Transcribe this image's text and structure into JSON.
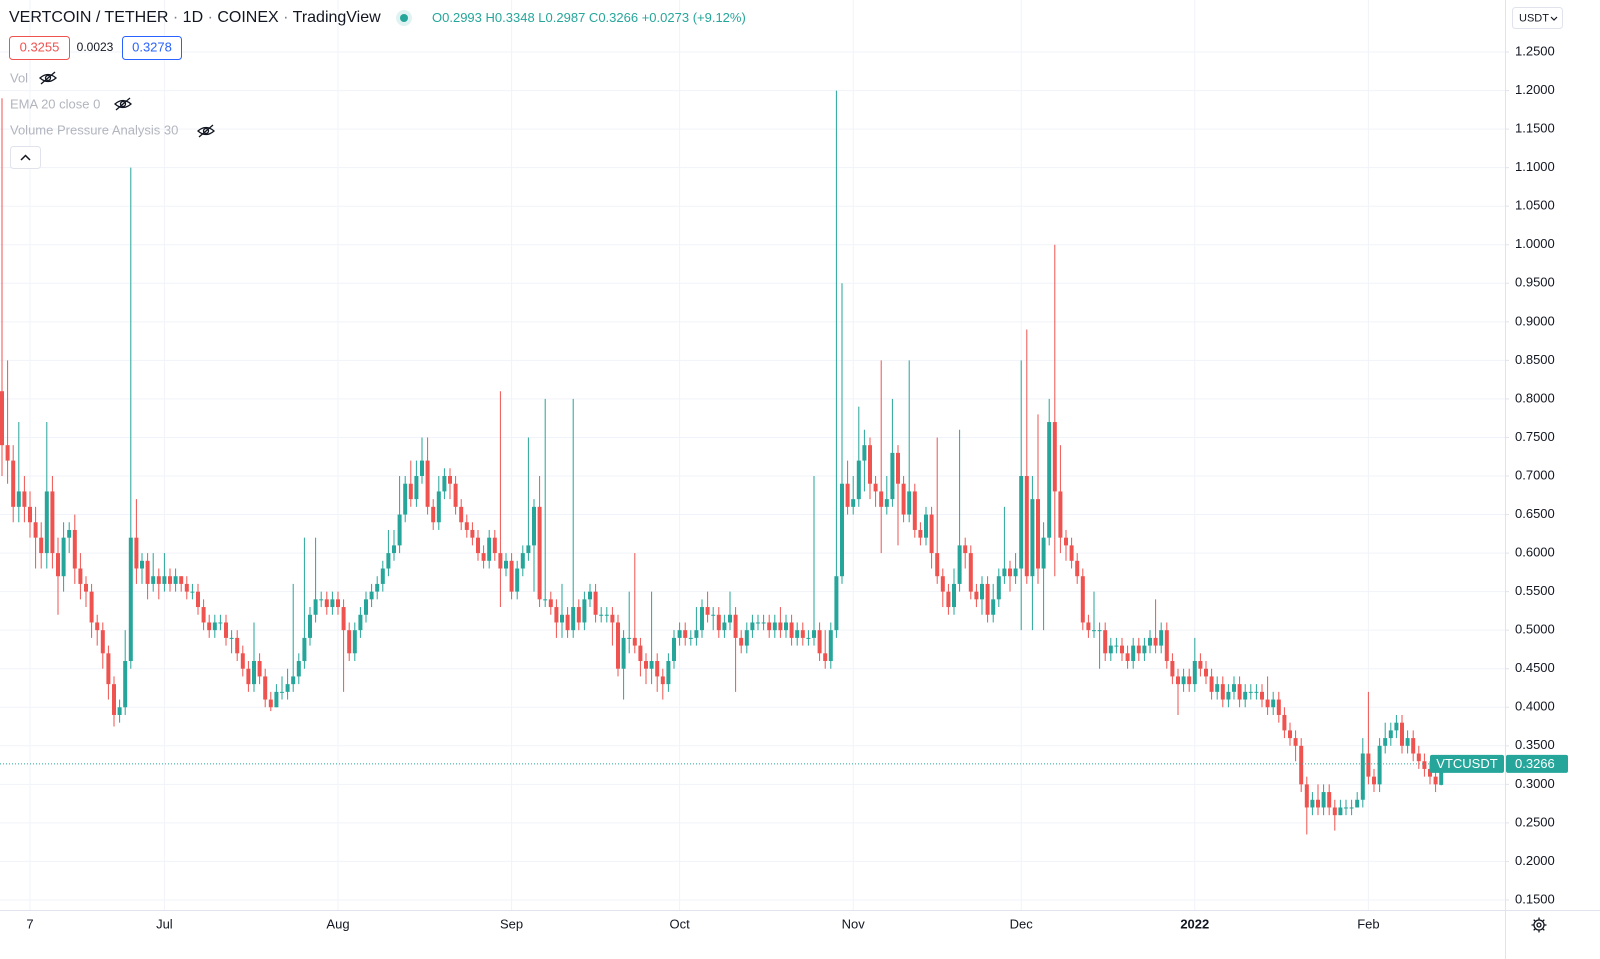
{
  "header": {
    "symbol": "VERTCOIN / TETHER",
    "interval": "1D",
    "exchange": "COINEX",
    "source": "TradingView",
    "separator": "·",
    "ohlc_prefixes": [
      "O",
      "H",
      "L",
      "C"
    ],
    "change": "+0.0273",
    "change_pct": "(+9.12%)"
  },
  "quote": {
    "bid": "0.3255",
    "spread": "0.0023",
    "ask": "0.3278"
  },
  "indicators": [
    "Vol",
    "EMA 20 close 0",
    "Volume Pressure Analysis 30"
  ],
  "currency": "USDT",
  "price_tag": "VTCUSDT",
  "chart_data": {
    "type": "candlestick",
    "up_color": "#26a69a",
    "down_color": "#ef5350",
    "grid": true,
    "ylim": [
      0.137,
      1.3175
    ],
    "yticks": [
      {
        "value": 0.15,
        "label": "0.1500"
      },
      {
        "value": 0.2,
        "label": "0.2000"
      },
      {
        "value": 0.25,
        "label": "0.2500"
      },
      {
        "value": 0.3,
        "label": "0.3000"
      },
      {
        "value": 0.35,
        "label": "0.3500"
      },
      {
        "value": 0.4,
        "label": "0.4000"
      },
      {
        "value": 0.45,
        "label": "0.4500"
      },
      {
        "value": 0.5,
        "label": "0.5000"
      },
      {
        "value": 0.55,
        "label": "0.5500"
      },
      {
        "value": 0.6,
        "label": "0.6000"
      },
      {
        "value": 0.65,
        "label": "0.6500"
      },
      {
        "value": 0.7,
        "label": "0.7000"
      },
      {
        "value": 0.75,
        "label": "0.7500"
      },
      {
        "value": 0.8,
        "label": "0.8000"
      },
      {
        "value": 0.85,
        "label": "0.8500"
      },
      {
        "value": 0.9,
        "label": "0.9000"
      },
      {
        "value": 0.95,
        "label": "0.9500"
      },
      {
        "value": 1.0,
        "label": "1.0000"
      },
      {
        "value": 1.05,
        "label": "1.0500"
      },
      {
        "value": 1.1,
        "label": "1.1000"
      },
      {
        "value": 1.15,
        "label": "1.1500"
      },
      {
        "value": 1.2,
        "label": "1.2000"
      },
      {
        "value": 1.25,
        "label": "1.2500"
      }
    ],
    "categories": [
      null,
      null,
      null,
      null,
      null,
      "7",
      null,
      null,
      null,
      null,
      null,
      null,
      null,
      null,
      null,
      null,
      null,
      null,
      null,
      null,
      null,
      null,
      null,
      null,
      null,
      null,
      null,
      null,
      null,
      "Jul",
      null,
      null,
      null,
      null,
      null,
      null,
      null,
      null,
      null,
      null,
      null,
      null,
      null,
      null,
      null,
      null,
      null,
      null,
      null,
      null,
      null,
      null,
      null,
      null,
      null,
      null,
      null,
      null,
      null,
      null,
      "Aug",
      null,
      null,
      null,
      null,
      null,
      null,
      null,
      null,
      null,
      null,
      null,
      null,
      null,
      null,
      null,
      null,
      null,
      null,
      null,
      null,
      null,
      null,
      null,
      null,
      null,
      null,
      null,
      null,
      null,
      null,
      "Sep",
      null,
      null,
      null,
      null,
      null,
      null,
      null,
      null,
      null,
      null,
      null,
      null,
      null,
      null,
      null,
      null,
      null,
      null,
      null,
      null,
      null,
      null,
      null,
      null,
      null,
      null,
      null,
      null,
      null,
      "Oct",
      null,
      null,
      null,
      null,
      null,
      null,
      null,
      null,
      null,
      null,
      null,
      null,
      null,
      null,
      null,
      null,
      null,
      null,
      null,
      null,
      null,
      null,
      null,
      null,
      null,
      null,
      null,
      null,
      null,
      null,
      "Nov",
      null,
      null,
      null,
      null,
      null,
      null,
      null,
      null,
      null,
      null,
      null,
      null,
      null,
      null,
      null,
      null,
      null,
      null,
      null,
      null,
      null,
      null,
      null,
      null,
      null,
      null,
      null,
      null,
      null,
      "Dec",
      null,
      null,
      null,
      null,
      null,
      null,
      null,
      null,
      null,
      null,
      null,
      null,
      null,
      null,
      null,
      null,
      null,
      null,
      null,
      null,
      null,
      null,
      null,
      null,
      null,
      null,
      null,
      null,
      null,
      null,
      "2022",
      null,
      null,
      null,
      null,
      null,
      null,
      null,
      null,
      null,
      null,
      null,
      null,
      null,
      null,
      null,
      null,
      null,
      null,
      null,
      null,
      null,
      null,
      null,
      null,
      null,
      null,
      null,
      null,
      null,
      null,
      "Feb",
      null,
      null,
      null,
      null,
      null,
      null,
      null,
      null,
      null,
      null,
      null,
      null,
      null
    ],
    "open": [
      0.81,
      0.74,
      0.72,
      0.66,
      0.68,
      0.66,
      0.64,
      0.62,
      0.6,
      0.68,
      0.6,
      0.57,
      0.62,
      0.63,
      0.58,
      0.56,
      0.55,
      0.51,
      0.5,
      0.47,
      0.43,
      0.39,
      0.4,
      0.46,
      0.62,
      0.58,
      0.59,
      0.56,
      0.57,
      0.56,
      0.57,
      0.56,
      0.57,
      0.56,
      0.55,
      0.55,
      0.53,
      0.51,
      0.5,
      0.51,
      0.51,
      0.49,
      0.49,
      0.47,
      0.45,
      0.43,
      0.46,
      0.44,
      0.41,
      0.4,
      0.42,
      0.42,
      0.43,
      0.44,
      0.46,
      0.49,
      0.52,
      0.54,
      0.54,
      0.53,
      0.54,
      0.53,
      0.5,
      0.47,
      0.5,
      0.52,
      0.54,
      0.55,
      0.56,
      0.58,
      0.6,
      0.61,
      0.65,
      0.69,
      0.67,
      0.7,
      0.72,
      0.66,
      0.64,
      0.68,
      0.7,
      0.69,
      0.66,
      0.64,
      0.63,
      0.62,
      0.6,
      0.59,
      0.62,
      0.6,
      0.58,
      0.59,
      0.55,
      0.58,
      0.6,
      0.61,
      0.66,
      0.54,
      0.54,
      0.53,
      0.51,
      0.52,
      0.5,
      0.53,
      0.51,
      0.54,
      0.55,
      0.52,
      0.52,
      0.52,
      0.51,
      0.45,
      0.49,
      0.49,
      0.48,
      0.46,
      0.45,
      0.46,
      0.44,
      0.43,
      0.46,
      0.49,
      0.5,
      0.49,
      0.49,
      0.5,
      0.53,
      0.52,
      0.52,
      0.5,
      0.51,
      0.52,
      0.49,
      0.48,
      0.5,
      0.51,
      0.51,
      0.51,
      0.5,
      0.51,
      0.5,
      0.51,
      0.49,
      0.5,
      0.49,
      0.49,
      0.5,
      0.47,
      0.46,
      0.5,
      0.57,
      0.69,
      0.66,
      0.67,
      0.72,
      0.74,
      0.69,
      0.68,
      0.66,
      0.67,
      0.73,
      0.69,
      0.65,
      0.68,
      0.63,
      0.62,
      0.65,
      0.6,
      0.57,
      0.55,
      0.53,
      0.56,
      0.61,
      0.6,
      0.55,
      0.54,
      0.56,
      0.52,
      0.54,
      0.57,
      0.58,
      0.57,
      0.58,
      0.7,
      0.57,
      0.67,
      0.58,
      0.62,
      0.77,
      0.68,
      0.62,
      0.61,
      0.59,
      0.57,
      0.51,
      0.5,
      0.5,
      0.5,
      0.47,
      0.48,
      0.48,
      0.47,
      0.46,
      0.48,
      0.47,
      0.48,
      0.49,
      0.48,
      0.5,
      0.46,
      0.44,
      0.43,
      0.44,
      0.43,
      0.46,
      0.45,
      0.44,
      0.42,
      0.43,
      0.41,
      0.42,
      0.43,
      0.41,
      0.42,
      0.42,
      0.42,
      0.41,
      0.4,
      0.41,
      0.39,
      0.37,
      0.36,
      0.35,
      0.3,
      0.27,
      0.28,
      0.27,
      0.29,
      0.27,
      0.26,
      0.27,
      0.27,
      0.27,
      0.28,
      0.34,
      0.31,
      0.3,
      0.35,
      0.36,
      0.37,
      0.38,
      0.35,
      0.36,
      0.34,
      0.33,
      0.32,
      0.31,
      0.2993
    ],
    "high": [
      1.19,
      0.85,
      0.74,
      0.77,
      0.7,
      0.68,
      0.66,
      0.64,
      0.77,
      0.7,
      0.62,
      0.64,
      0.64,
      0.65,
      0.6,
      0.57,
      0.56,
      0.52,
      0.51,
      0.48,
      0.44,
      0.41,
      0.5,
      1.1,
      0.67,
      0.6,
      0.6,
      0.6,
      0.58,
      0.6,
      0.58,
      0.58,
      0.57,
      0.57,
      0.56,
      0.56,
      0.54,
      0.52,
      0.52,
      0.52,
      0.52,
      0.5,
      0.5,
      0.48,
      0.46,
      0.51,
      0.47,
      0.45,
      0.42,
      0.43,
      0.44,
      0.45,
      0.56,
      0.47,
      0.62,
      0.53,
      0.62,
      0.55,
      0.55,
      0.55,
      0.55,
      0.54,
      0.51,
      0.51,
      0.53,
      0.55,
      0.56,
      0.57,
      0.59,
      0.63,
      0.63,
      0.7,
      0.7,
      0.72,
      0.72,
      0.75,
      0.75,
      0.67,
      0.7,
      0.71,
      0.71,
      0.7,
      0.67,
      0.65,
      0.64,
      0.63,
      0.61,
      0.63,
      0.63,
      0.81,
      0.6,
      0.6,
      0.59,
      0.61,
      0.75,
      0.67,
      0.7,
      0.8,
      0.55,
      0.54,
      0.56,
      0.53,
      0.8,
      0.54,
      0.55,
      0.56,
      0.56,
      0.53,
      0.53,
      0.53,
      0.52,
      0.5,
      0.55,
      0.6,
      0.49,
      0.47,
      0.55,
      0.47,
      0.45,
      0.47,
      0.5,
      0.51,
      0.51,
      0.5,
      0.53,
      0.54,
      0.55,
      0.53,
      0.53,
      0.52,
      0.55,
      0.53,
      0.5,
      0.51,
      0.52,
      0.52,
      0.52,
      0.52,
      0.52,
      0.53,
      0.52,
      0.52,
      0.51,
      0.51,
      0.5,
      0.7,
      0.51,
      0.5,
      0.51,
      1.2,
      0.95,
      0.72,
      0.7,
      0.79,
      0.76,
      0.75,
      0.7,
      0.85,
      0.7,
      0.8,
      0.74,
      0.7,
      0.85,
      0.69,
      0.64,
      0.66,
      0.66,
      0.75,
      0.58,
      0.56,
      0.58,
      0.76,
      0.62,
      0.61,
      0.56,
      0.57,
      0.57,
      0.56,
      0.58,
      0.66,
      0.59,
      0.6,
      0.85,
      0.89,
      0.7,
      0.78,
      0.64,
      0.8,
      1.0,
      0.74,
      0.63,
      0.62,
      0.6,
      0.58,
      0.52,
      0.55,
      0.51,
      0.51,
      0.49,
      0.49,
      0.49,
      0.48,
      0.49,
      0.49,
      0.49,
      0.5,
      0.54,
      0.51,
      0.51,
      0.47,
      0.45,
      0.45,
      0.45,
      0.49,
      0.47,
      0.46,
      0.45,
      0.44,
      0.44,
      0.43,
      0.44,
      0.44,
      0.43,
      0.43,
      0.43,
      0.43,
      0.44,
      0.42,
      0.42,
      0.4,
      0.38,
      0.37,
      0.36,
      0.31,
      0.29,
      0.3,
      0.3,
      0.3,
      0.28,
      0.28,
      0.28,
      0.28,
      0.29,
      0.36,
      0.42,
      0.32,
      0.36,
      0.38,
      0.38,
      0.39,
      0.39,
      0.37,
      0.37,
      0.35,
      0.34,
      0.33,
      0.32,
      0.3348
    ],
    "low": [
      0.7,
      0.69,
      0.64,
      0.64,
      0.64,
      0.62,
      0.58,
      0.58,
      0.58,
      0.58,
      0.52,
      0.55,
      0.6,
      0.56,
      0.54,
      0.53,
      0.49,
      0.48,
      0.45,
      0.41,
      0.375,
      0.38,
      0.39,
      0.45,
      0.56,
      0.56,
      0.54,
      0.55,
      0.54,
      0.55,
      0.55,
      0.55,
      0.55,
      0.54,
      0.54,
      0.52,
      0.5,
      0.49,
      0.49,
      0.5,
      0.48,
      0.47,
      0.46,
      0.44,
      0.42,
      0.42,
      0.43,
      0.4,
      0.395,
      0.4,
      0.41,
      0.41,
      0.42,
      0.43,
      0.45,
      0.48,
      0.51,
      0.53,
      0.52,
      0.52,
      0.52,
      0.42,
      0.46,
      0.46,
      0.49,
      0.51,
      0.53,
      0.54,
      0.55,
      0.57,
      0.59,
      0.6,
      0.64,
      0.66,
      0.66,
      0.69,
      0.65,
      0.63,
      0.63,
      0.67,
      0.67,
      0.65,
      0.63,
      0.62,
      0.61,
      0.59,
      0.58,
      0.58,
      0.59,
      0.53,
      0.57,
      0.54,
      0.54,
      0.57,
      0.59,
      0.55,
      0.53,
      0.53,
      0.52,
      0.49,
      0.49,
      0.49,
      0.49,
      0.5,
      0.5,
      0.53,
      0.51,
      0.51,
      0.51,
      0.48,
      0.44,
      0.41,
      0.47,
      0.47,
      0.44,
      0.43,
      0.43,
      0.42,
      0.41,
      0.42,
      0.45,
      0.48,
      0.48,
      0.48,
      0.48,
      0.49,
      0.51,
      0.5,
      0.49,
      0.49,
      0.5,
      0.42,
      0.47,
      0.47,
      0.49,
      0.5,
      0.5,
      0.49,
      0.49,
      0.49,
      0.49,
      0.48,
      0.48,
      0.48,
      0.48,
      0.48,
      0.46,
      0.45,
      0.45,
      0.49,
      0.56,
      0.65,
      0.65,
      0.66,
      0.68,
      0.67,
      0.66,
      0.6,
      0.65,
      0.66,
      0.61,
      0.64,
      0.64,
      0.62,
      0.61,
      0.61,
      0.58,
      0.56,
      0.53,
      0.52,
      0.52,
      0.55,
      0.58,
      0.54,
      0.53,
      0.52,
      0.51,
      0.51,
      0.53,
      0.56,
      0.55,
      0.56,
      0.5,
      0.56,
      0.5,
      0.56,
      0.5,
      0.61,
      0.57,
      0.6,
      0.59,
      0.58,
      0.56,
      0.5,
      0.49,
      0.49,
      0.45,
      0.46,
      0.46,
      0.47,
      0.46,
      0.45,
      0.45,
      0.46,
      0.46,
      0.47,
      0.47,
      0.47,
      0.45,
      0.43,
      0.39,
      0.42,
      0.42,
      0.42,
      0.44,
      0.43,
      0.41,
      0.41,
      0.4,
      0.4,
      0.41,
      0.4,
      0.4,
      0.41,
      0.41,
      0.4,
      0.39,
      0.39,
      0.38,
      0.36,
      0.35,
      0.33,
      0.29,
      0.235,
      0.26,
      0.26,
      0.26,
      0.26,
      0.24,
      0.26,
      0.26,
      0.26,
      0.27,
      0.27,
      0.3,
      0.29,
      0.29,
      0.34,
      0.35,
      0.36,
      0.34,
      0.34,
      0.33,
      0.32,
      0.31,
      0.3,
      0.29,
      0.2987
    ],
    "close": [
      0.74,
      0.72,
      0.66,
      0.68,
      0.66,
      0.64,
      0.62,
      0.6,
      0.68,
      0.6,
      0.57,
      0.62,
      0.63,
      0.58,
      0.56,
      0.55,
      0.51,
      0.5,
      0.47,
      0.43,
      0.39,
      0.4,
      0.46,
      0.62,
      0.58,
      0.59,
      0.56,
      0.57,
      0.56,
      0.57,
      0.56,
      0.57,
      0.56,
      0.55,
      0.55,
      0.53,
      0.51,
      0.5,
      0.51,
      0.51,
      0.49,
      0.49,
      0.47,
      0.45,
      0.43,
      0.46,
      0.44,
      0.41,
      0.4,
      0.42,
      0.42,
      0.43,
      0.44,
      0.46,
      0.49,
      0.52,
      0.54,
      0.54,
      0.53,
      0.54,
      0.53,
      0.5,
      0.47,
      0.5,
      0.52,
      0.54,
      0.55,
      0.56,
      0.58,
      0.6,
      0.61,
      0.65,
      0.69,
      0.67,
      0.7,
      0.72,
      0.66,
      0.64,
      0.68,
      0.7,
      0.69,
      0.66,
      0.64,
      0.63,
      0.62,
      0.6,
      0.59,
      0.62,
      0.6,
      0.58,
      0.59,
      0.55,
      0.58,
      0.6,
      0.61,
      0.66,
      0.54,
      0.54,
      0.53,
      0.51,
      0.52,
      0.5,
      0.53,
      0.51,
      0.54,
      0.55,
      0.52,
      0.52,
      0.52,
      0.51,
      0.45,
      0.49,
      0.49,
      0.48,
      0.46,
      0.45,
      0.46,
      0.44,
      0.43,
      0.46,
      0.49,
      0.5,
      0.49,
      0.49,
      0.5,
      0.53,
      0.52,
      0.52,
      0.5,
      0.51,
      0.52,
      0.49,
      0.48,
      0.5,
      0.51,
      0.51,
      0.51,
      0.5,
      0.51,
      0.5,
      0.51,
      0.49,
      0.5,
      0.49,
      0.49,
      0.5,
      0.47,
      0.46,
      0.5,
      0.57,
      0.69,
      0.66,
      0.67,
      0.72,
      0.74,
      0.69,
      0.68,
      0.66,
      0.67,
      0.73,
      0.69,
      0.65,
      0.68,
      0.63,
      0.62,
      0.65,
      0.6,
      0.57,
      0.55,
      0.53,
      0.56,
      0.61,
      0.6,
      0.55,
      0.54,
      0.56,
      0.52,
      0.54,
      0.57,
      0.58,
      0.57,
      0.58,
      0.7,
      0.57,
      0.67,
      0.58,
      0.62,
      0.77,
      0.68,
      0.62,
      0.61,
      0.59,
      0.57,
      0.51,
      0.5,
      0.5,
      0.5,
      0.47,
      0.48,
      0.48,
      0.47,
      0.46,
      0.48,
      0.47,
      0.48,
      0.49,
      0.48,
      0.5,
      0.46,
      0.44,
      0.43,
      0.44,
      0.43,
      0.46,
      0.45,
      0.44,
      0.42,
      0.43,
      0.41,
      0.42,
      0.43,
      0.41,
      0.42,
      0.42,
      0.42,
      0.41,
      0.4,
      0.41,
      0.39,
      0.37,
      0.36,
      0.35,
      0.3,
      0.27,
      0.28,
      0.27,
      0.29,
      0.27,
      0.26,
      0.27,
      0.27,
      0.27,
      0.28,
      0.34,
      0.31,
      0.3,
      0.35,
      0.36,
      0.37,
      0.38,
      0.35,
      0.36,
      0.34,
      0.33,
      0.32,
      0.31,
      0.3,
      0.3266
    ]
  }
}
